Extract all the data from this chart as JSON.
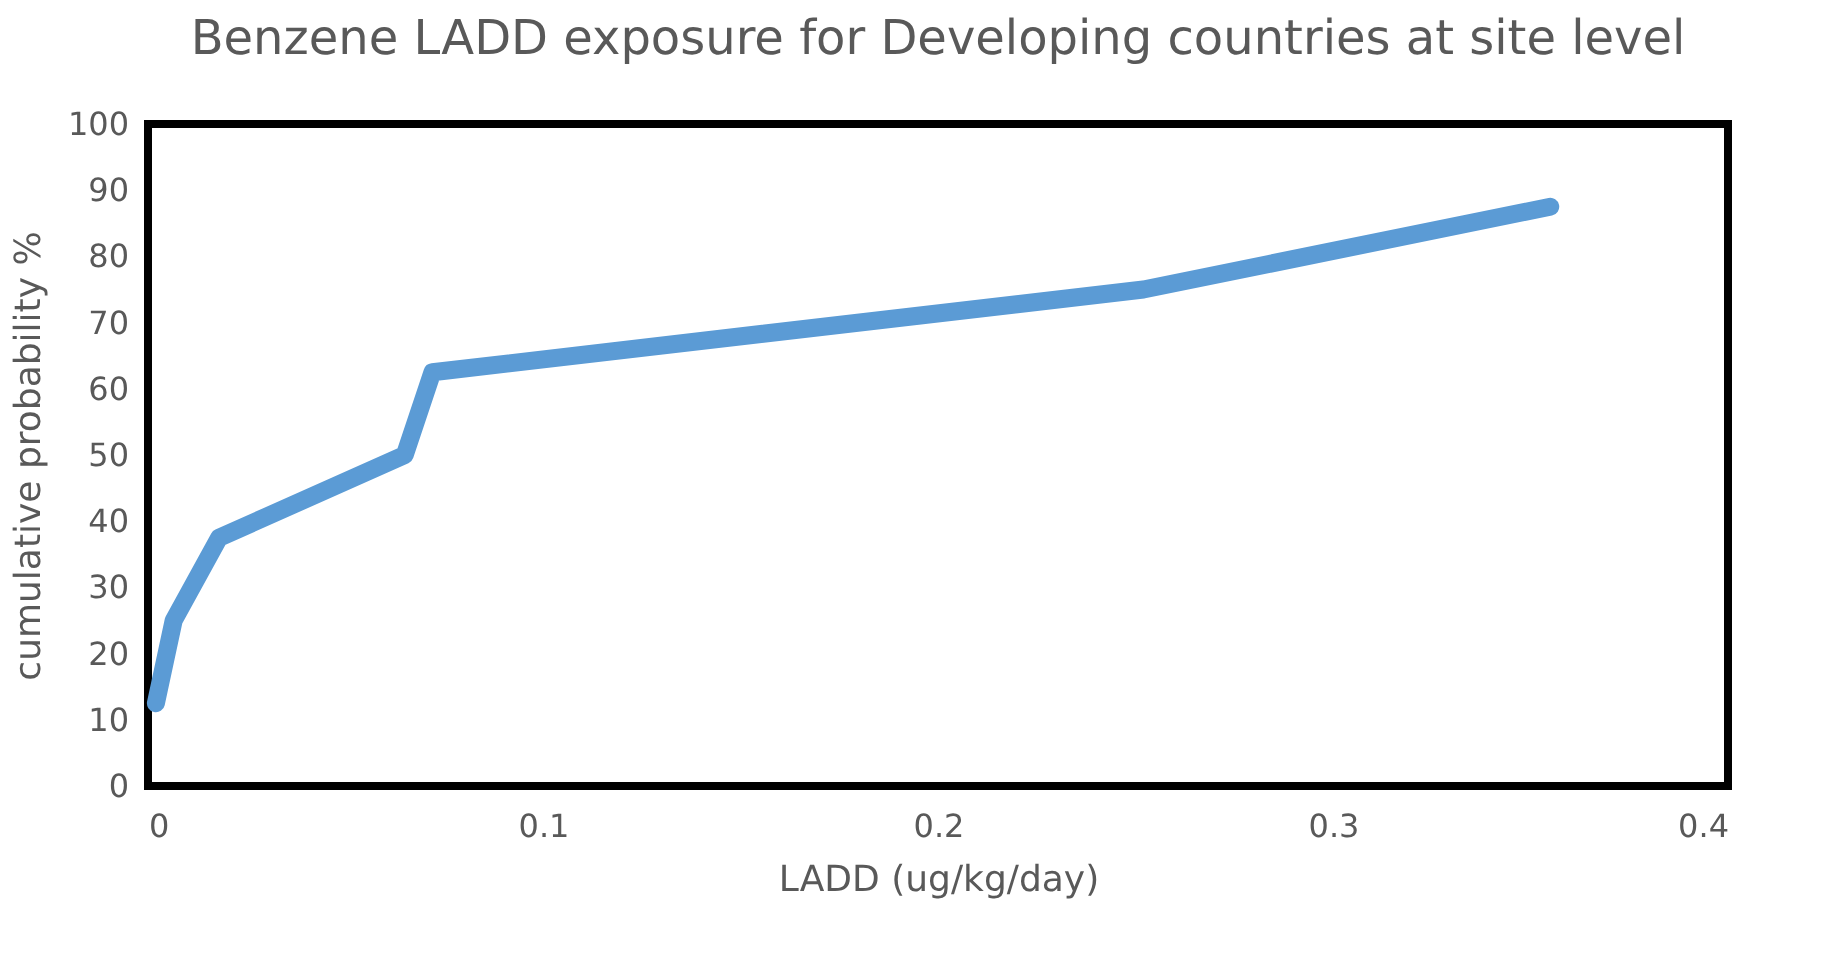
{
  "chart_data": {
    "type": "line",
    "title": "Benzene LADD exposure for Developing countries at site level",
    "xlabel": "LADD (ug/kg/day)",
    "ylabel": "cumulative probability %",
    "x": [
      0.002,
      0.0065,
      0.018,
      0.065,
      0.072,
      0.252,
      0.355
    ],
    "series": [
      {
        "color": "#5b9bd5",
        "values": [
          12.5,
          25,
          37.5,
          50,
          62.5,
          75,
          87.5
        ]
      }
    ],
    "xlim": [
      0,
      0.4
    ],
    "xticks": [
      0,
      0.1,
      0.2,
      0.3,
      0.4
    ],
    "ylim": [
      0,
      100
    ],
    "yticks": [
      0,
      10,
      20,
      30,
      40,
      50,
      60,
      70,
      80,
      90,
      100
    ],
    "grid": false,
    "legend": false,
    "line_style": "solid"
  }
}
